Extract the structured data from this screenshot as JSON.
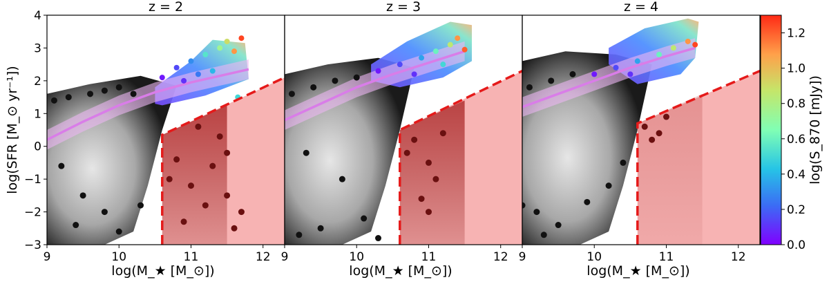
{
  "chart_data": {
    "type": "scatter",
    "description_kind": "hexbin density panels with model overlays",
    "shared": {
      "xlabel": "log(M_★ [M_⊙])",
      "ylabel": "log(SFR [M_⊙ yr⁻¹])",
      "xlim": [
        9,
        12.3
      ],
      "ylim": [
        -3,
        4
      ],
      "xticks": [
        "9",
        "10",
        "11",
        "12"
      ],
      "yticks": [
        "−3",
        "−2",
        "−1",
        "0",
        "1",
        "2",
        "3",
        "4"
      ]
    },
    "panels": [
      {
        "title": "z = 2",
        "main_sequence": {
          "x": [
            9.0,
            9.5,
            10.0,
            10.5,
            11.0,
            11.5,
            11.8
          ],
          "y": [
            0.2,
            0.75,
            1.25,
            1.65,
            1.95,
            2.2,
            2.35
          ],
          "scatter_dex": 0.3
        },
        "quenched_region": {
          "x_start": 10.6,
          "y_start": 0.35,
          "x_end": 12.3,
          "y_end": 2.1
        },
        "gray_points": [
          [
            9.1,
            1.4
          ],
          [
            9.3,
            1.5
          ],
          [
            9.6,
            1.6
          ],
          [
            9.8,
            1.7
          ],
          [
            10.0,
            1.8
          ],
          [
            10.2,
            1.6
          ],
          [
            9.2,
            -0.6
          ],
          [
            9.5,
            -1.5
          ],
          [
            9.8,
            -2.0
          ],
          [
            10.0,
            -2.6
          ],
          [
            9.4,
            -2.4
          ],
          [
            10.3,
            -1.8
          ]
        ],
        "quenched_points": [
          [
            10.8,
            -0.4
          ],
          [
            11.0,
            -1.2
          ],
          [
            11.2,
            -1.8
          ],
          [
            11.3,
            -0.6
          ],
          [
            11.5,
            -1.5
          ],
          [
            11.6,
            -2.5
          ],
          [
            10.9,
            -2.3
          ],
          [
            11.4,
            0.3
          ],
          [
            11.7,
            -2.0
          ],
          [
            11.1,
            0.6
          ],
          [
            10.7,
            -1.0
          ],
          [
            11.5,
            -0.2
          ]
        ],
        "smg_points": [
          [
            10.6,
            2.1,
            0.05
          ],
          [
            10.8,
            2.4,
            0.15
          ],
          [
            11.0,
            2.6,
            0.3
          ],
          [
            11.2,
            2.8,
            0.55
          ],
          [
            11.4,
            3.0,
            0.75
          ],
          [
            11.5,
            3.2,
            0.9
          ],
          [
            11.6,
            2.9,
            1.1
          ],
          [
            11.3,
            2.3,
            0.4
          ],
          [
            10.9,
            2.0,
            0.1
          ],
          [
            11.1,
            2.2,
            0.25
          ],
          [
            11.7,
            3.3,
            1.25
          ],
          [
            11.65,
            1.5,
            0.5
          ]
        ]
      },
      {
        "title": "z = 3",
        "main_sequence": {
          "x": [
            9.0,
            9.5,
            10.0,
            10.5,
            11.0,
            11.5
          ],
          "y": [
            0.8,
            1.3,
            1.8,
            2.2,
            2.55,
            2.9
          ],
          "scatter_dex": 0.3
        },
        "quenched_region": {
          "x_start": 10.6,
          "y_start": 0.5,
          "x_end": 12.3,
          "y_end": 2.3
        },
        "gray_points": [
          [
            9.1,
            1.6
          ],
          [
            9.4,
            1.8
          ],
          [
            9.7,
            2.0
          ],
          [
            10.0,
            2.1
          ],
          [
            9.2,
            -2.7
          ],
          [
            9.5,
            -2.5
          ],
          [
            10.1,
            -2.2
          ],
          [
            9.8,
            -1.0
          ],
          [
            10.3,
            -2.8
          ],
          [
            9.3,
            -0.2
          ]
        ],
        "quenched_points": [
          [
            10.8,
            0.2
          ],
          [
            11.0,
            -0.5
          ],
          [
            11.1,
            -1.0
          ],
          [
            10.9,
            -1.6
          ],
          [
            11.2,
            0.4
          ],
          [
            10.7,
            -0.2
          ],
          [
            11.0,
            -2.0
          ]
        ],
        "smg_points": [
          [
            10.3,
            2.3,
            0.05
          ],
          [
            10.6,
            2.5,
            0.15
          ],
          [
            10.9,
            2.7,
            0.35
          ],
          [
            11.1,
            2.9,
            0.6
          ],
          [
            11.3,
            3.1,
            0.85
          ],
          [
            11.4,
            3.3,
            1.1
          ],
          [
            10.8,
            2.2,
            0.1
          ],
          [
            11.2,
            2.5,
            0.5
          ],
          [
            11.5,
            2.95,
            1.2
          ]
        ]
      },
      {
        "title": "z = 4",
        "main_sequence": {
          "x": [
            9.0,
            9.5,
            10.0,
            10.5,
            11.0,
            11.4
          ],
          "y": [
            1.2,
            1.6,
            2.0,
            2.4,
            2.75,
            3.0
          ],
          "scatter_dex": 0.3
        },
        "quenched_region": {
          "x_start": 10.6,
          "y_start": 0.7,
          "x_end": 12.3,
          "y_end": 2.3
        },
        "gray_points": [
          [
            9.1,
            1.8
          ],
          [
            9.4,
            2.0
          ],
          [
            9.7,
            2.2
          ],
          [
            9.2,
            -2.0
          ],
          [
            9.3,
            -2.7
          ],
          [
            9.5,
            -2.4
          ],
          [
            9.9,
            -1.7
          ],
          [
            10.2,
            -1.2
          ],
          [
            10.4,
            -0.5
          ],
          [
            9.0,
            -1.8
          ]
        ],
        "quenched_points": [
          [
            10.7,
            0.6
          ],
          [
            10.9,
            0.4
          ],
          [
            11.0,
            0.9
          ],
          [
            10.8,
            0.2
          ]
        ],
        "smg_points": [
          [
            10.0,
            2.2,
            0.05
          ],
          [
            10.3,
            2.4,
            0.15
          ],
          [
            10.6,
            2.6,
            0.35
          ],
          [
            10.9,
            2.8,
            0.6
          ],
          [
            11.1,
            3.0,
            0.85
          ],
          [
            11.3,
            3.2,
            1.1
          ],
          [
            10.5,
            2.2,
            0.1
          ],
          [
            11.4,
            3.1,
            1.25
          ]
        ]
      }
    ],
    "colorbar": {
      "label": "log(S_870 [mJy])",
      "min": 0.0,
      "max": 1.3,
      "ticks": [
        "0.0",
        "0.2",
        "0.4",
        "0.6",
        "0.8",
        "1.0",
        "1.2"
      ],
      "tick_values": [
        0.0,
        0.2,
        0.4,
        0.6,
        0.8,
        1.0,
        1.2
      ],
      "colormap": "rainbow"
    },
    "colors": {
      "main_sequence": "#d97de8",
      "main_sequence_band": "#ebb6f2",
      "quenched_fill": "#f7b3b3",
      "quenched_edge": "#e51a1a",
      "quenched_points": "#6a1010",
      "density_dark": "#111111",
      "density_light": "#d8d8d8"
    }
  }
}
